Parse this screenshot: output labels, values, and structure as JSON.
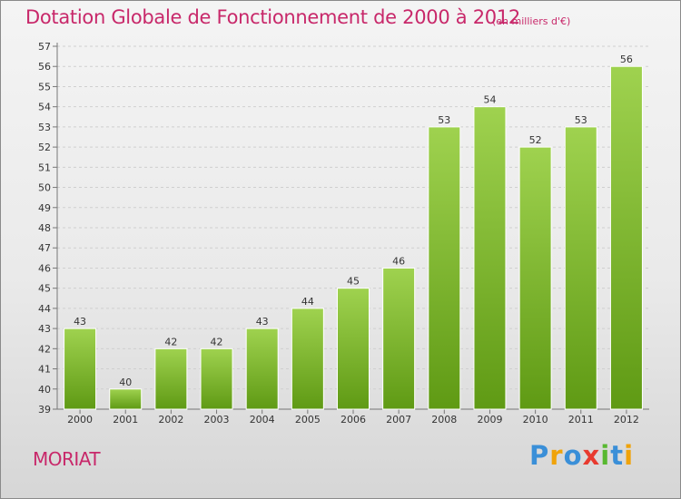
{
  "header": {
    "title": "Dotation Globale de Fonctionnement de 2000 à 2012",
    "unit_note": "(en milliers d'€)"
  },
  "footer": {
    "commune": "MORIAT",
    "brand": [
      "P",
      "r",
      "o",
      "x",
      "i",
      "t",
      "i"
    ],
    "brand_colors": [
      "#3a8fd8",
      "#f0a30a",
      "#3a8fd8",
      "#e83a2f",
      "#58b830",
      "#3a8fd8",
      "#f0a30a"
    ]
  },
  "colors": {
    "accent": "#c8286a",
    "bar_light": "#9fd24f",
    "bar_dark": "#5f9a14",
    "grid": "#cfcfcf"
  },
  "chart_data": {
    "type": "bar",
    "categories": [
      "2000",
      "2001",
      "2002",
      "2003",
      "2004",
      "2005",
      "2006",
      "2007",
      "2008",
      "2009",
      "2010",
      "2011",
      "2012"
    ],
    "values": [
      43,
      40,
      42,
      42,
      43,
      44,
      45,
      46,
      53,
      54,
      52,
      53,
      56
    ],
    "ylim": [
      39,
      57
    ],
    "yticks": [
      39,
      40,
      41,
      42,
      43,
      44,
      45,
      46,
      47,
      48,
      49,
      50,
      51,
      52,
      53,
      54,
      55,
      56,
      57
    ],
    "grid": true,
    "data_labels": true
  }
}
